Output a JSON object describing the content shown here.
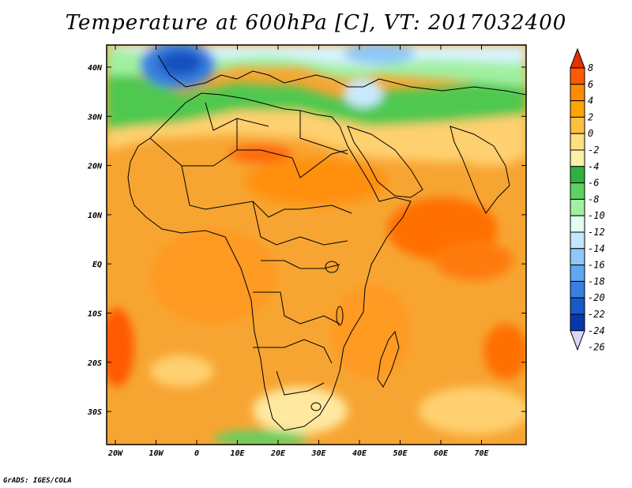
{
  "title": "Temperature at 600hPa [C], VT: 2017032400",
  "credit": "GrADS: IGES/COLA",
  "lat_ticks": [
    "40N",
    "30N",
    "20N",
    "10N",
    "EQ",
    "10S",
    "20S",
    "30S"
  ],
  "lon_ticks": [
    "20W",
    "10W",
    "0",
    "10E",
    "20E",
    "30E",
    "40E",
    "50E",
    "60E",
    "70E"
  ],
  "colorbar": {
    "labels": [
      "8",
      "6",
      "4",
      "2",
      "0",
      "-2",
      "-4",
      "-6",
      "-8",
      "-10",
      "-12",
      "-14",
      "-16",
      "-18",
      "-20",
      "-22",
      "-24",
      "-26"
    ],
    "colors_top_to_bottom": [
      "#e63000",
      "#ff5a00",
      "#ff8c00",
      "#ffa500",
      "#ffc040",
      "#ffe080",
      "#fff0a8",
      "#30b040",
      "#60d060",
      "#a0f0a0",
      "#e0fff0",
      "#c0e8ff",
      "#90c8f8",
      "#60a8f0",
      "#3880e0",
      "#1858c8",
      "#0838b0",
      "#101080"
    ]
  },
  "map_colors": {
    "base_orange": "#f7a532",
    "deep_orange": "#ff8c00",
    "red_orange": "#ff5a00",
    "light_yellow": "#ffd070",
    "pale_yellow": "#ffe8a0",
    "green": "#30b040",
    "light_green": "#80e080",
    "pale_green": "#c8ffd0",
    "pale_blue": "#d8f4ff",
    "light_blue": "#90c8f8",
    "blue": "#3880e0",
    "dark_blue": "#1850c0"
  }
}
